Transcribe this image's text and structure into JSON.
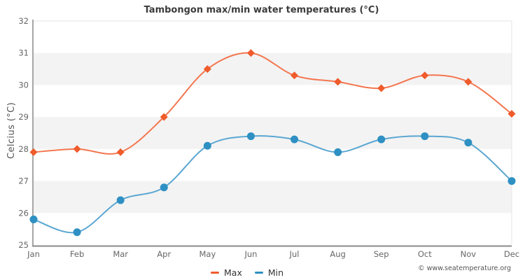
{
  "chart_data": {
    "type": "line",
    "title": "Tambongon max/min water temperatures (°C)",
    "ylabel": "Celcius (°C)",
    "xlabel": "",
    "categories": [
      "Jan",
      "Feb",
      "Mar",
      "Apr",
      "May",
      "Jun",
      "Jul",
      "Aug",
      "Sep",
      "Oct",
      "Nov",
      "Dec"
    ],
    "series": [
      {
        "name": "Max",
        "marker": "diamond",
        "color": "#ef5b2b",
        "line_color": "#f4764f",
        "values": [
          27.9,
          28.0,
          27.9,
          29.0,
          30.5,
          31.0,
          30.3,
          30.1,
          29.9,
          30.3,
          30.1,
          29.1
        ]
      },
      {
        "name": "Min",
        "marker": "circle",
        "color": "#2e90c3",
        "line_color": "#5aa6d2",
        "values": [
          25.8,
          25.4,
          26.4,
          26.8,
          28.1,
          28.4,
          28.3,
          27.9,
          28.3,
          28.4,
          28.2,
          27.0
        ]
      }
    ],
    "ylim": [
      25,
      32
    ],
    "ytick_step": 1,
    "band_color": "#f3f3f3",
    "legend_position": "bottom-center",
    "grid": "alternating-bands"
  },
  "footer": {
    "copyright": "© www.seatemperature.org"
  }
}
